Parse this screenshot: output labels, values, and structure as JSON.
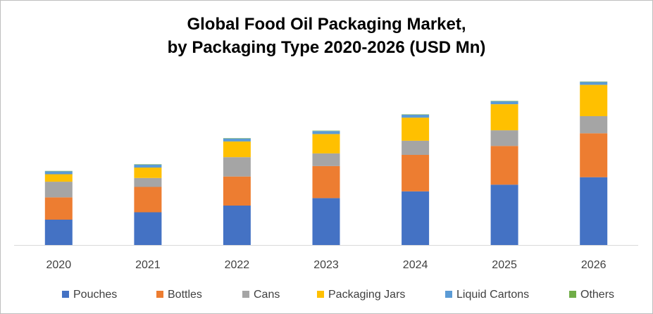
{
  "chart_data": {
    "type": "bar",
    "stacked": true,
    "title_lines": [
      "Global  Food Oil Packaging Market,",
      "by Packaging Type 2020-2026 (USD Mn)"
    ],
    "categories": [
      "2020",
      "2021",
      "2022",
      "2023",
      "2024",
      "2025",
      "2026"
    ],
    "series": [
      {
        "name": "Pouches",
        "color": "#4472C4",
        "values": [
          34,
          44,
          53,
          63,
          72,
          81,
          91
        ]
      },
      {
        "name": "Bottles",
        "color": "#ED7D31",
        "values": [
          30,
          34,
          39,
          43,
          49,
          52,
          59
        ]
      },
      {
        "name": "Cans",
        "color": "#A5A5A5",
        "values": [
          21,
          12,
          26,
          17,
          19,
          21,
          23
        ]
      },
      {
        "name": "Packaging Jars",
        "color": "#FFC000",
        "values": [
          10,
          14,
          21,
          26,
          31,
          35,
          42
        ]
      },
      {
        "name": "Liquid Cartons",
        "color": "#5B9BD5",
        "values": [
          4,
          4,
          4,
          4,
          4,
          4,
          4
        ]
      },
      {
        "name": "Others",
        "color": "#70AD47",
        "values": [
          0.5,
          0.5,
          0.5,
          0.5,
          0.5,
          0.5,
          0.5
        ]
      }
    ],
    "xlabel": "",
    "ylabel": "",
    "ylim": [
      0,
      225
    ],
    "grid": false,
    "legend_position": "bottom"
  }
}
